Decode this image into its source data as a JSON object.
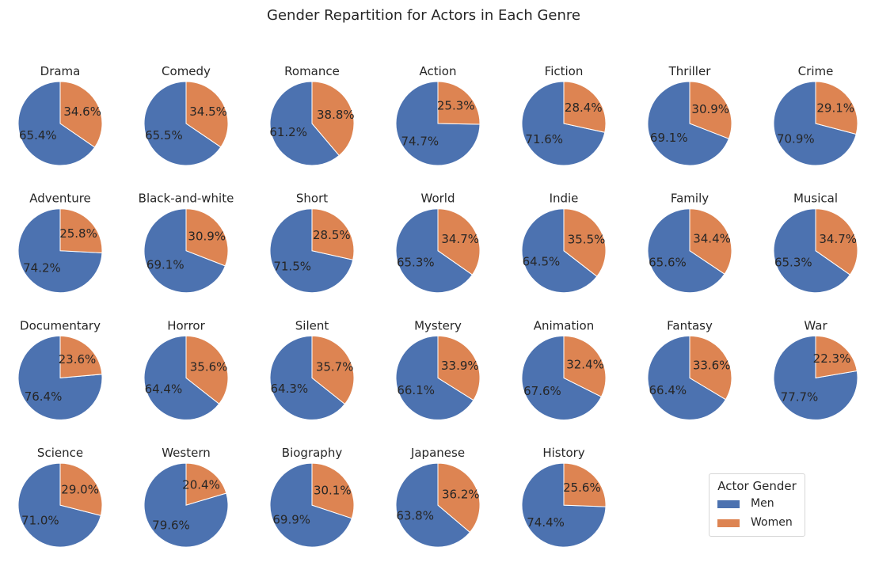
{
  "figure_title": "Gender Repartition for Actors in Each Genre",
  "legend": {
    "title": "Actor Gender",
    "items": [
      {
        "label": "Men",
        "color": "#4c72b0"
      },
      {
        "label": "Women",
        "color": "#dd8452"
      }
    ]
  },
  "chart_data": {
    "type": "pie",
    "series_names": [
      "Men",
      "Women"
    ],
    "colors": [
      "#4c72b0",
      "#dd8452"
    ],
    "value_format": "percent, 1 decimal",
    "start_angle": "90 degrees (top), women slice clockwise first",
    "pies": [
      {
        "title": "Drama",
        "values": [
          65.4,
          34.6
        ]
      },
      {
        "title": "Comedy",
        "values": [
          65.5,
          34.5
        ]
      },
      {
        "title": "Romance",
        "values": [
          61.2,
          38.8
        ]
      },
      {
        "title": "Action",
        "values": [
          74.7,
          25.3
        ]
      },
      {
        "title": "Fiction",
        "values": [
          71.6,
          28.4
        ]
      },
      {
        "title": "Thriller",
        "values": [
          69.1,
          30.9
        ]
      },
      {
        "title": "Crime",
        "values": [
          70.9,
          29.1
        ]
      },
      {
        "title": "Adventure",
        "values": [
          74.2,
          25.8
        ]
      },
      {
        "title": "Black-and-white",
        "values": [
          69.1,
          30.9
        ]
      },
      {
        "title": "Short",
        "values": [
          71.5,
          28.5
        ]
      },
      {
        "title": "World",
        "values": [
          65.3,
          34.7
        ]
      },
      {
        "title": "Indie",
        "values": [
          64.5,
          35.5
        ]
      },
      {
        "title": "Family",
        "values": [
          65.6,
          34.4
        ]
      },
      {
        "title": "Musical",
        "values": [
          65.3,
          34.7
        ]
      },
      {
        "title": "Documentary",
        "values": [
          76.4,
          23.6
        ]
      },
      {
        "title": "Horror",
        "values": [
          64.4,
          35.6
        ]
      },
      {
        "title": "Silent",
        "values": [
          64.3,
          35.7
        ]
      },
      {
        "title": "Mystery",
        "values": [
          66.1,
          33.9
        ]
      },
      {
        "title": "Animation",
        "values": [
          67.6,
          32.4
        ]
      },
      {
        "title": "Fantasy",
        "values": [
          66.4,
          33.6
        ]
      },
      {
        "title": "War",
        "values": [
          77.7,
          22.3
        ]
      },
      {
        "title": "Science",
        "values": [
          71.0,
          29.0
        ]
      },
      {
        "title": "Western",
        "values": [
          79.6,
          20.4
        ]
      },
      {
        "title": "Biography",
        "values": [
          69.9,
          30.1
        ]
      },
      {
        "title": "Japanese",
        "values": [
          63.8,
          36.2
        ]
      },
      {
        "title": "History",
        "values": [
          74.4,
          25.6
        ]
      }
    ]
  }
}
